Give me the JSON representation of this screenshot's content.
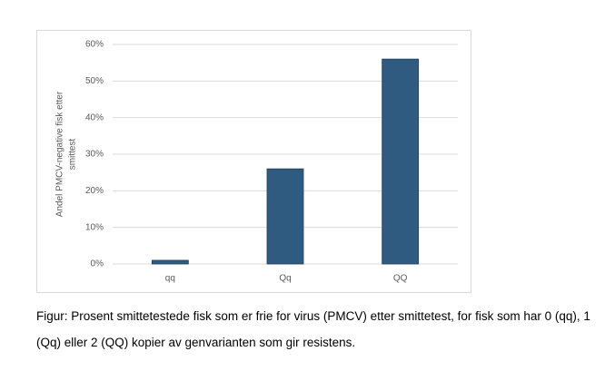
{
  "chart_data": {
    "type": "bar",
    "ylabel": [
      "Andel PMCV-negative fisk etter",
      "smittest"
    ],
    "categories": [
      "qq",
      "Qq",
      "QQ"
    ],
    "values": [
      1,
      26,
      56
    ],
    "color": "#2e5b7f",
    "ylim": [
      0,
      60
    ],
    "yticks": [
      {
        "value": 0,
        "label": "0%"
      },
      {
        "value": 10,
        "label": "10%"
      },
      {
        "value": 20,
        "label": "20%"
      },
      {
        "value": 30,
        "label": "30%"
      },
      {
        "value": 40,
        "label": "40%"
      },
      {
        "value": 50,
        "label": "50%"
      },
      {
        "value": 60,
        "label": "60%"
      }
    ],
    "grid": true
  },
  "caption": "Figur: Prosent smittetestede fisk som er frie for virus (PMCV) etter smittetest, for fisk som har 0 (qq), 1 (Qq) eller 2 (QQ) kopier av genvarianten som gir resistens."
}
